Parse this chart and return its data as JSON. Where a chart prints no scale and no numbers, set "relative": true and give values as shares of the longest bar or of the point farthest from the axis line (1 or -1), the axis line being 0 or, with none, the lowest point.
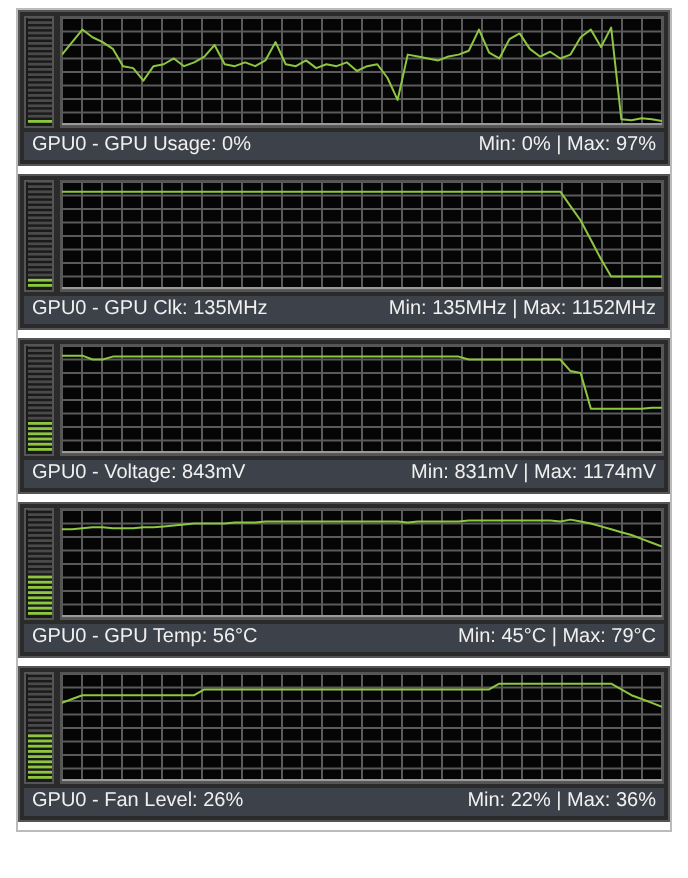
{
  "chart_data": [
    {
      "type": "line",
      "title": "GPU0 - GPU Usage: 0%",
      "annotations": [
        "Min: 0% | Max: 97%"
      ],
      "relative": true,
      "grid": true,
      "categories": [
        null,
        null,
        null,
        null,
        null,
        null,
        null,
        null,
        null,
        null,
        null,
        null,
        null,
        null,
        null,
        null,
        null,
        null,
        null,
        null,
        null,
        null,
        null,
        null,
        null,
        null,
        null,
        null,
        null,
        null,
        null,
        null,
        null,
        null,
        null,
        null,
        null,
        null,
        null,
        null,
        null,
        null,
        null,
        null,
        null,
        null,
        null,
        null,
        null,
        null,
        null,
        null,
        null,
        null,
        null,
        null,
        null,
        null,
        null,
        null
      ],
      "series": [
        {
          "color": "#8dc63f",
          "values": [
            0.72,
            0.85,
            0.98,
            0.9,
            0.85,
            0.78,
            0.6,
            0.58,
            0.45,
            0.6,
            0.62,
            0.68,
            0.6,
            0.64,
            0.7,
            0.82,
            0.62,
            0.6,
            0.64,
            0.6,
            0.66,
            0.85,
            0.62,
            0.6,
            0.66,
            0.58,
            0.62,
            0.6,
            0.64,
            0.55,
            0.6,
            0.62,
            0.48,
            0.25,
            0.72,
            0.7,
            0.68,
            0.66,
            0.7,
            0.72,
            0.76,
            0.98,
            0.74,
            0.68,
            0.88,
            0.94,
            0.78,
            0.7,
            0.75,
            0.68,
            0.72,
            0.9,
            0.98,
            0.8,
            1,
            0.05,
            0.04,
            0.06,
            0.05,
            0.03
          ]
        }
      ]
    },
    {
      "type": "line",
      "title": "GPU0 - GPU Clk: 135MHz",
      "annotations": [
        "Min: 135MHz | Max: 1152MHz"
      ],
      "relative": true,
      "grid": true,
      "categories": [
        null,
        null,
        null,
        null,
        null,
        null,
        null,
        null,
        null,
        null,
        null,
        null,
        null,
        null,
        null,
        null,
        null,
        null,
        null,
        null,
        null,
        null,
        null,
        null,
        null,
        null,
        null,
        null,
        null,
        null,
        null,
        null,
        null,
        null,
        null,
        null,
        null,
        null,
        null,
        null,
        null,
        null,
        null,
        null,
        null,
        null,
        null,
        null,
        null,
        null,
        null,
        null,
        null,
        null,
        null,
        null,
        null,
        null,
        null,
        null
      ],
      "series": [
        {
          "color": "#8dc63f",
          "values": [
            1,
            1,
            1,
            1,
            1,
            1,
            1,
            1,
            1,
            1,
            1,
            1,
            1,
            1,
            1,
            1,
            1,
            1,
            1,
            1,
            1,
            1,
            1,
            1,
            1,
            1,
            1,
            1,
            1,
            1,
            1,
            1,
            1,
            1,
            1,
            1,
            1,
            1,
            1,
            1,
            1,
            1,
            1,
            1,
            1,
            1,
            1,
            1,
            1,
            1,
            0.85,
            0.7,
            0.5,
            0.3,
            0.12,
            0.12,
            0.12,
            0.12,
            0.12,
            0.12
          ]
        }
      ]
    },
    {
      "type": "line",
      "title": "GPU0 - Voltage: 843mV",
      "annotations": [
        "Min: 831mV | Max: 1174mV"
      ],
      "relative": true,
      "grid": true,
      "categories": [
        null,
        null,
        null,
        null,
        null,
        null,
        null,
        null,
        null,
        null,
        null,
        null,
        null,
        null,
        null,
        null,
        null,
        null,
        null,
        null,
        null,
        null,
        null,
        null,
        null,
        null,
        null,
        null,
        null,
        null,
        null,
        null,
        null,
        null,
        null,
        null,
        null,
        null,
        null,
        null,
        null,
        null,
        null,
        null,
        null,
        null,
        null,
        null,
        null,
        null,
        null,
        null,
        null,
        null,
        null,
        null,
        null,
        null,
        null,
        null
      ],
      "series": [
        {
          "color": "#8dc63f",
          "values": [
            1,
            1,
            1,
            0.96,
            0.96,
            0.99,
            0.99,
            0.99,
            0.99,
            0.99,
            0.99,
            0.99,
            0.99,
            0.99,
            0.99,
            0.99,
            0.99,
            0.99,
            0.99,
            0.99,
            0.99,
            0.99,
            0.99,
            0.99,
            0.99,
            0.99,
            0.99,
            0.99,
            0.99,
            0.99,
            0.99,
            0.99,
            0.99,
            0.99,
            0.99,
            0.99,
            0.99,
            0.99,
            0.99,
            0.99,
            0.96,
            0.96,
            0.96,
            0.96,
            0.96,
            0.96,
            0.96,
            0.96,
            0.96,
            0.96,
            0.84,
            0.82,
            0.45,
            0.45,
            0.45,
            0.45,
            0.45,
            0.45,
            0.46,
            0.46
          ]
        }
      ]
    },
    {
      "type": "line",
      "title": "GPU0 - GPU Temp: 56°C",
      "annotations": [
        "Min: 45°C | Max: 79°C"
      ],
      "relative": true,
      "grid": true,
      "categories": [
        null,
        null,
        null,
        null,
        null,
        null,
        null,
        null,
        null,
        null,
        null,
        null,
        null,
        null,
        null,
        null,
        null,
        null,
        null,
        null,
        null,
        null,
        null,
        null,
        null,
        null,
        null,
        null,
        null,
        null,
        null,
        null,
        null,
        null,
        null,
        null,
        null,
        null,
        null,
        null,
        null,
        null,
        null,
        null,
        null,
        null,
        null,
        null,
        null,
        null,
        null,
        null,
        null,
        null,
        null,
        null,
        null,
        null,
        null,
        null
      ],
      "series": [
        {
          "color": "#8dc63f",
          "values": [
            0.9,
            0.9,
            0.91,
            0.92,
            0.92,
            0.91,
            0.91,
            0.91,
            0.92,
            0.92,
            0.93,
            0.94,
            0.95,
            0.96,
            0.96,
            0.96,
            0.96,
            0.97,
            0.97,
            0.97,
            0.98,
            0.98,
            0.98,
            0.98,
            0.98,
            0.98,
            0.98,
            0.98,
            0.98,
            0.98,
            0.98,
            0.98,
            0.98,
            0.98,
            0.97,
            0.98,
            0.98,
            0.98,
            0.98,
            0.98,
            0.99,
            0.99,
            0.99,
            0.99,
            0.99,
            0.99,
            0.99,
            0.99,
            0.99,
            0.98,
            1,
            0.98,
            0.96,
            0.93,
            0.9,
            0.87,
            0.84,
            0.8,
            0.76,
            0.72
          ]
        }
      ]
    },
    {
      "type": "line",
      "title": "GPU0 - Fan Level: 26%",
      "annotations": [
        "Min: 22% | Max: 36%"
      ],
      "relative": true,
      "grid": true,
      "categories": [
        null,
        null,
        null,
        null,
        null,
        null,
        null,
        null,
        null,
        null,
        null,
        null,
        null,
        null,
        null,
        null,
        null,
        null,
        null,
        null,
        null,
        null,
        null,
        null,
        null,
        null,
        null,
        null,
        null,
        null,
        null,
        null,
        null,
        null,
        null,
        null,
        null,
        null,
        null,
        null,
        null,
        null,
        null,
        null,
        null,
        null,
        null,
        null,
        null,
        null,
        null,
        null,
        null,
        null,
        null,
        null,
        null,
        null,
        null,
        null
      ],
      "series": [
        {
          "color": "#8dc63f",
          "values": [
            0.8,
            0.84,
            0.88,
            0.88,
            0.88,
            0.88,
            0.88,
            0.88,
            0.88,
            0.88,
            0.88,
            0.88,
            0.88,
            0.88,
            0.94,
            0.94,
            0.94,
            0.94,
            0.94,
            0.94,
            0.94,
            0.94,
            0.94,
            0.94,
            0.94,
            0.94,
            0.94,
            0.94,
            0.94,
            0.94,
            0.94,
            0.94,
            0.94,
            0.94,
            0.94,
            0.94,
            0.94,
            0.94,
            0.94,
            0.94,
            0.94,
            0.94,
            0.94,
            1,
            1,
            1,
            1,
            1,
            1,
            1,
            1,
            1,
            1,
            1,
            1,
            0.94,
            0.88,
            0.84,
            0.8,
            0.76
          ]
        }
      ]
    }
  ]
}
